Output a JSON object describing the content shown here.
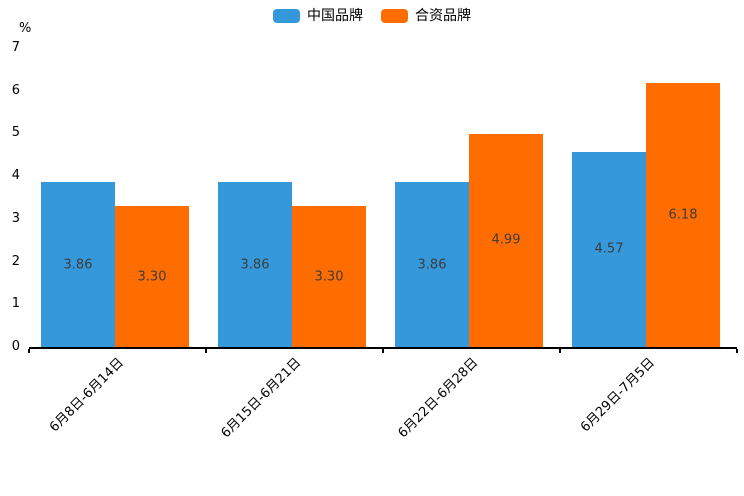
{
  "chart_data": {
    "type": "bar",
    "title": "",
    "categories": [
      "6月8日-6月14日",
      "6月15日-6月21日",
      "6月22日-6月28日",
      "6月29日-7月5日"
    ],
    "series": [
      {
        "name": "中国品牌",
        "color": "#3498db",
        "values": [
          3.86,
          3.86,
          3.86,
          4.57
        ]
      },
      {
        "name": "合资品牌",
        "color": "#ff6c00",
        "values": [
          3.3,
          3.3,
          4.99,
          6.18
        ]
      }
    ],
    "ylabel": "%",
    "ylim": [
      0,
      7
    ],
    "yticks": [
      0,
      1,
      2,
      3,
      4,
      5,
      6,
      7
    ],
    "grid": false,
    "legend_position": "top-center",
    "value_labels": "inside-center",
    "value_label_decimals": 2,
    "axis_color": "#000000",
    "value_label_color": "#3d3d3d",
    "background_color": "#ffffff"
  }
}
